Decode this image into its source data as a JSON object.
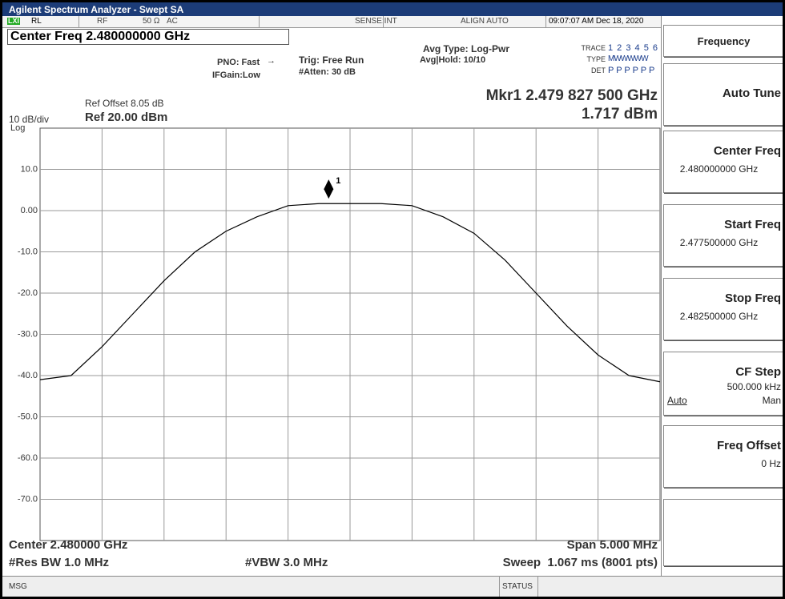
{
  "title_bar": "Agilent Spectrum Analyzer - Swept SA",
  "status_row": {
    "lxi": "LXI",
    "rl": "RL",
    "rf": "RF",
    "impedance": "50 Ω",
    "coupling": "AC",
    "sense": "SENSE:INT",
    "align": "ALIGN AUTO",
    "timestamp": "09:07:07 AM Dec 18, 2020"
  },
  "settings": {
    "center_freq": "Center Freq 2.480000000 GHz",
    "pno": "PNO: Fast",
    "ifgain": "IFGain:Low",
    "trig": "Trig: Free Run",
    "atten": "#Atten: 30 dB",
    "avg_type": "Avg Type: Log-Pwr",
    "avg_hold": "Avg|Hold: 10/10",
    "trace_label": "TRACE",
    "trace_numbers": "1 2 3 4 5 6",
    "type_label": "TYPE",
    "type_values": "MWWWWW",
    "det_label": "DET",
    "det_values": "P P P P P P"
  },
  "marker_readout": {
    "frequency": "Mkr1 2.479 827 500 GHz",
    "amplitude": "1.717 dBm"
  },
  "reference": {
    "offset": "Ref Offset 8.05 dB",
    "scale": "10 dB/div",
    "level": "Ref 20.00 dBm",
    "scale_type": "Log"
  },
  "footer": {
    "center": "Center 2.480000 GHz",
    "span": "Span 5.000 MHz",
    "rbw": "#Res BW 1.0 MHz",
    "vbw": "#VBW 3.0 MHz",
    "sweep": "Sweep  1.067 ms (8001 pts)"
  },
  "softkeys": {
    "menu": "Frequency",
    "keys": [
      {
        "label": "Auto Tune"
      },
      {
        "label": "Center Freq",
        "value": "2.480000000 GHz"
      },
      {
        "label": "Start Freq",
        "value": "2.477500000 GHz"
      },
      {
        "label": "Stop Freq",
        "value": "2.482500000 GHz"
      },
      {
        "label": "CF Step",
        "value": "500.000 kHz",
        "option_a": "Auto",
        "option_b": "Man"
      },
      {
        "label": "Freq Offset",
        "value": "0 Hz"
      }
    ]
  },
  "bottom_bar": {
    "msg": "MSG",
    "status": "STATUS"
  },
  "chart_data": {
    "type": "line",
    "x": [
      2.4775,
      2.47775,
      2.478,
      2.47825,
      2.4785,
      2.47875,
      2.479,
      2.47925,
      2.4795,
      2.47975,
      2.48,
      2.48025,
      2.4805,
      2.48075,
      2.481,
      2.48125,
      2.4815,
      2.48175,
      2.482,
      2.48225,
      2.4825
    ],
    "series": [
      {
        "name": "1",
        "color": "#000000",
        "values": [
          -41,
          -40,
          -33,
          -25,
          -17,
          -10,
          -5,
          -1.5,
          1.2,
          1.7,
          1.7,
          1.7,
          1.2,
          -1.5,
          -5.5,
          -12,
          -20,
          -28,
          -35,
          -40,
          -41.5
        ]
      }
    ],
    "marker": {
      "label": "1",
      "x": 2.4798275,
      "y": 1.717
    },
    "xlim": [
      2.4775,
      2.4825
    ],
    "ylim": [
      -80,
      20
    ],
    "yticks": [
      {
        "value": 10,
        "label": "10.0"
      },
      {
        "value": 0,
        "label": "0.00"
      },
      {
        "value": -10,
        "label": "-10.0"
      },
      {
        "value": -20,
        "label": "-20.0"
      },
      {
        "value": -30,
        "label": "-30.0"
      },
      {
        "value": -40,
        "label": "-40.0"
      },
      {
        "value": -50,
        "label": "-50.0"
      },
      {
        "value": -60,
        "label": "-60.0"
      },
      {
        "value": -70,
        "label": "-70.0"
      }
    ],
    "grid": true
  }
}
